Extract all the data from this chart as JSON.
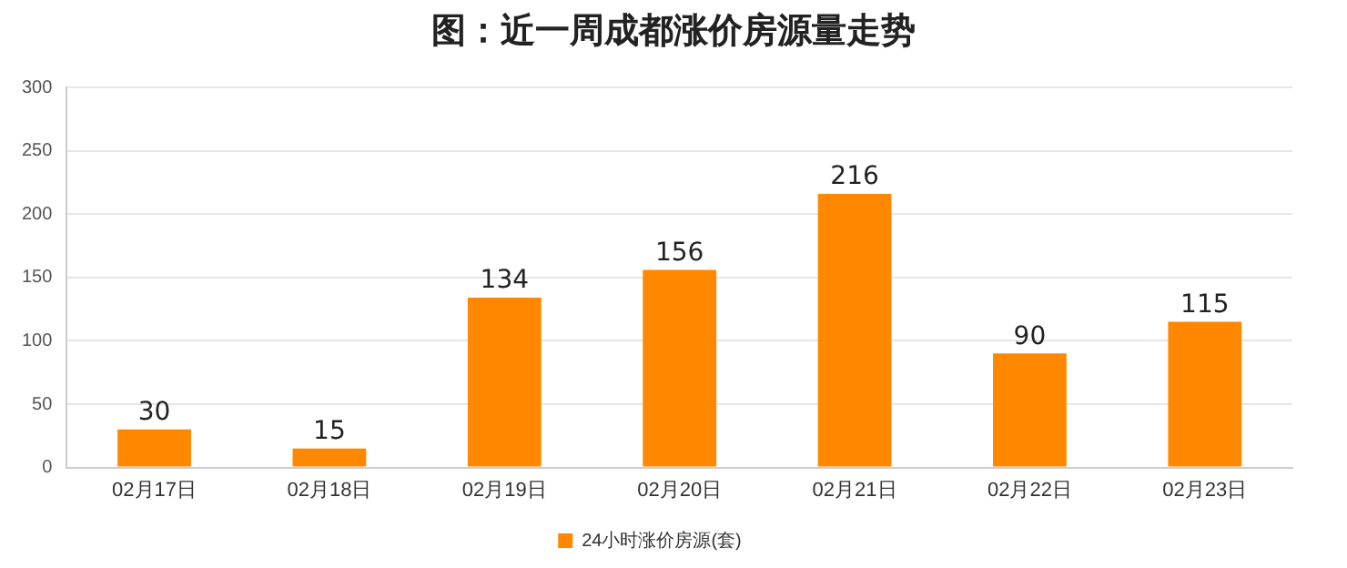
{
  "chart_data": {
    "type": "bar",
    "title": "图：近一周成都涨价房源量走势",
    "categories": [
      "02月17日",
      "02月18日",
      "02月19日",
      "02月20日",
      "02月21日",
      "02月22日",
      "02月23日"
    ],
    "series": [
      {
        "name": "24小时涨价房源(套)",
        "color": "#ff8800",
        "values": [
          30,
          15,
          134,
          156,
          216,
          90,
          115
        ]
      }
    ],
    "ylim": [
      0,
      300
    ],
    "yticks": [
      0,
      50,
      100,
      150,
      200,
      250,
      300
    ],
    "grid": "y",
    "legend": "bottom",
    "data_labels": true
  }
}
